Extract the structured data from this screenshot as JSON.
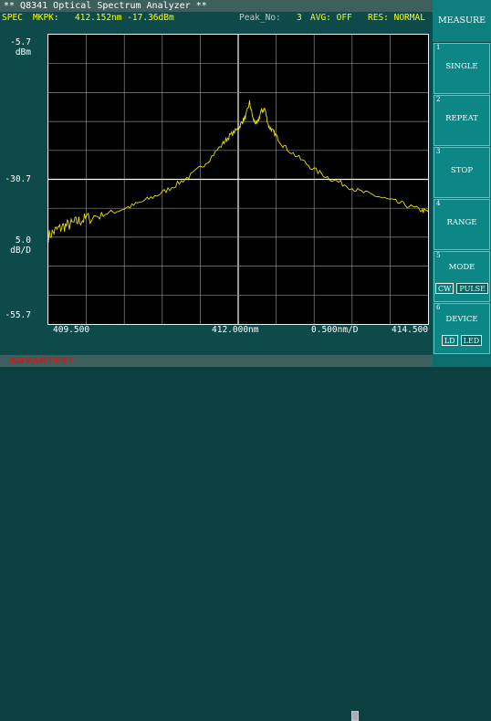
{
  "window_title": "** Q8341 Optical Spectrum Analyzer **",
  "status": {
    "mode": "SPEC",
    "marker_label": "MKPK:",
    "marker_value": "412.152nm -17.36dBm",
    "peak_label": "Peak_No:",
    "peak_value": "3",
    "avg": "AVG: OFF",
    "res": "RES: NORMAL"
  },
  "axis": {
    "y_top": "-5.7",
    "y_unit_top": "dBm",
    "y_mid": "-30.7",
    "y_scale": "5.0",
    "y_scale_unit": "dB/D",
    "y_bottom": "-55.7",
    "x_left": "409.500",
    "x_center": "412.000nm",
    "x_span": "0.500nm/D",
    "x_right": "414.500"
  },
  "chart_data": {
    "type": "line",
    "x_unit": "nm",
    "y_unit": "dBm",
    "xlim": [
      409.5,
      414.5
    ],
    "ylim": [
      -55.7,
      -5.7
    ],
    "grid": true,
    "series": [
      {
        "color": "#e8e000",
        "x": [
          409.5,
          409.6,
          409.7,
          409.8,
          409.9,
          410.0,
          410.2,
          410.4,
          410.6,
          410.8,
          411.0,
          411.2,
          411.4,
          411.6,
          411.8,
          411.9,
          412.0,
          412.05,
          412.1,
          412.15,
          412.2,
          412.25,
          412.3,
          412.35,
          412.4,
          412.45,
          412.5,
          412.6,
          412.8,
          413.0,
          413.2,
          413.4,
          413.6,
          413.8,
          414.0,
          414.2,
          414.4,
          414.5
        ],
        "y": [
          -40.5,
          -39.5,
          -38.8,
          -38.5,
          -37.9,
          -37.5,
          -36.8,
          -36.2,
          -35.3,
          -34.2,
          -33.0,
          -31.5,
          -29.8,
          -27.5,
          -24.5,
          -23.0,
          -22.0,
          -20.8,
          -19.8,
          -17.4,
          -20.5,
          -21.2,
          -19.0,
          -18.5,
          -21.5,
          -22.3,
          -23.2,
          -25.0,
          -27.0,
          -29.0,
          -30.5,
          -31.6,
          -32.8,
          -33.5,
          -34.3,
          -35.1,
          -36.0,
          -36.3
        ]
      }
    ]
  },
  "brand": "ADVANTEST",
  "panel": {
    "title": "MEASURE",
    "keys": [
      {
        "num": "1",
        "label": "SINGLE"
      },
      {
        "num": "2",
        "label": "REPEAT"
      },
      {
        "num": "3",
        "label": "STOP"
      },
      {
        "num": "4",
        "label": "RANGE"
      },
      {
        "num": "5",
        "label": "MODE",
        "opt_a": "CW",
        "opt_b": "PULSE"
      },
      {
        "num": "6",
        "label": "DEVICE",
        "opt_a": "LD",
        "opt_b": "LED"
      }
    ]
  }
}
